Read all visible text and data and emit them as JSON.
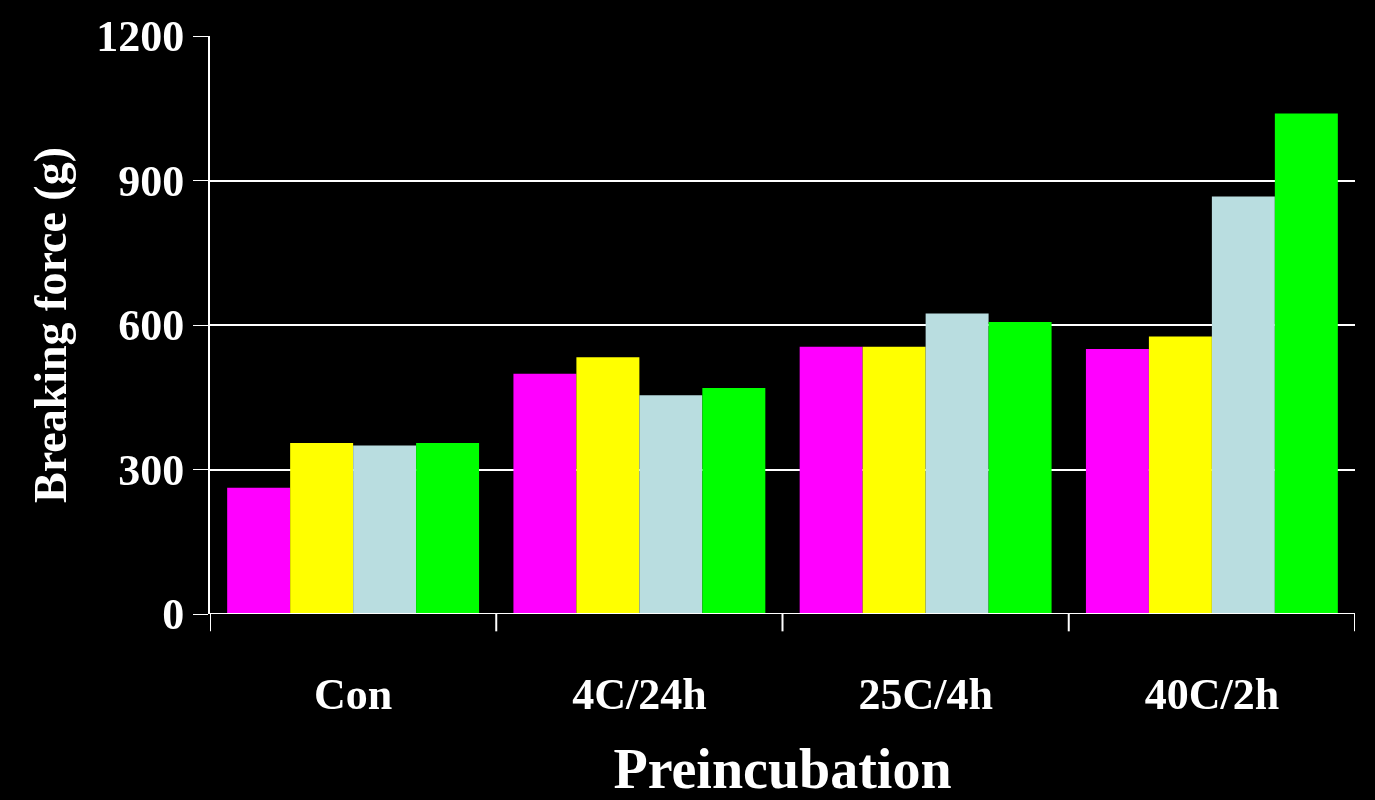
{
  "chart_data": {
    "type": "bar",
    "xlabel": "Preincubation",
    "ylabel": "Breaking force (g)",
    "categories": [
      "Con",
      "4C/24h",
      "25C/4h",
      "40C/2h"
    ],
    "series": [
      {
        "color": "#ff00ff",
        "values": [
          262,
          499,
          555,
          550
        ]
      },
      {
        "color": "#ffff00",
        "values": [
          355,
          533,
          555,
          576
        ]
      },
      {
        "color": "#b9dde0",
        "values": [
          350,
          454,
          624,
          867
        ]
      },
      {
        "color": "#00ff00",
        "values": [
          355,
          469,
          606,
          1039
        ]
      }
    ],
    "ylim": [
      0,
      1200
    ],
    "yticks": [
      0,
      300,
      600,
      900,
      1200
    ],
    "grid": "y"
  }
}
